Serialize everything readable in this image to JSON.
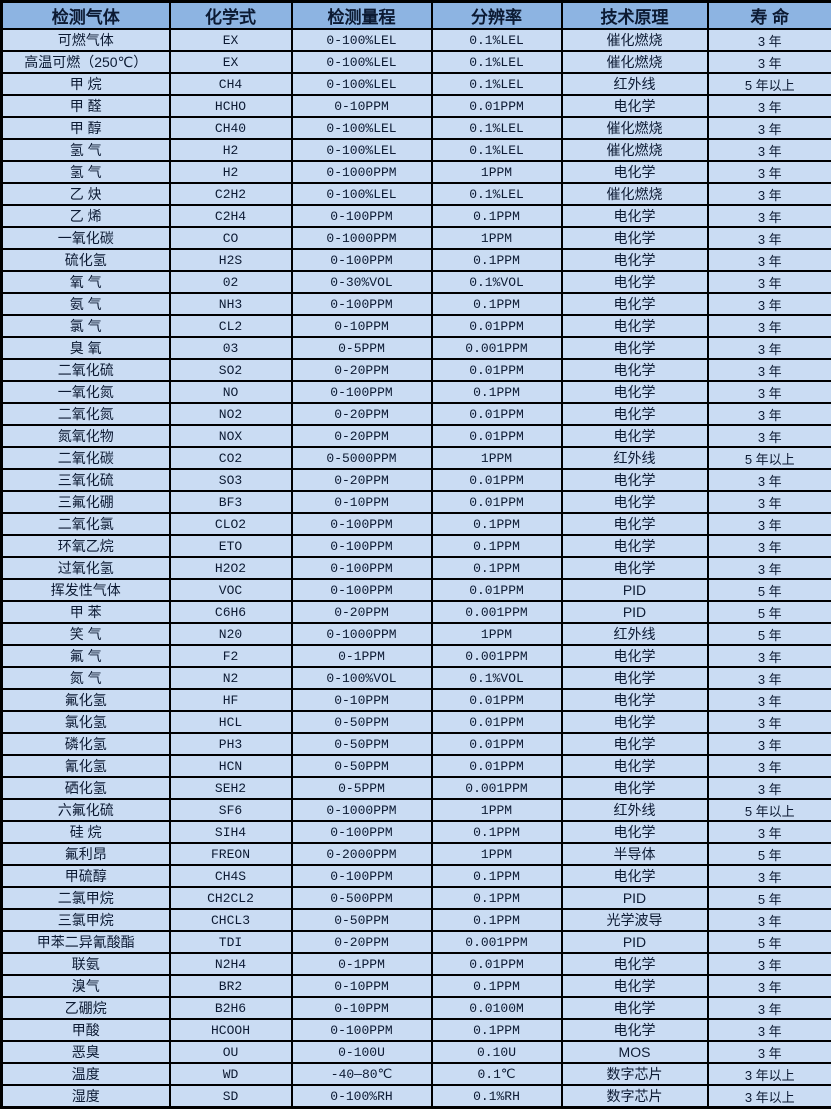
{
  "colors": {
    "header_bg": "#8db4e2",
    "row_bg": "#cadcf3",
    "border": "#000000",
    "text": "#0c1a33"
  },
  "table": {
    "columns": [
      {
        "key": "gas",
        "label": "检测气体"
      },
      {
        "key": "formula",
        "label": "化学式"
      },
      {
        "key": "range",
        "label": "检测量程"
      },
      {
        "key": "resolution",
        "label": "分辨率"
      },
      {
        "key": "principle",
        "label": "技术原理"
      },
      {
        "key": "lifespan",
        "label": "寿  命"
      }
    ],
    "rows": [
      [
        "可燃气体",
        "EX",
        "0-100%LEL",
        "0.1%LEL",
        "催化燃烧",
        "3 年"
      ],
      [
        "高温可燃（250℃）",
        "EX",
        "0-100%LEL",
        "0.1%LEL",
        "催化燃烧",
        "3 年"
      ],
      [
        "甲  烷",
        "CH4",
        "0-100%LEL",
        "0.1%LEL",
        "红外线",
        "5 年以上"
      ],
      [
        "甲  醛",
        "HCHO",
        "0-10PPM",
        "0.01PPM",
        "电化学",
        "3 年"
      ],
      [
        "甲  醇",
        "CH40",
        "0-100%LEL",
        "0.1%LEL",
        "催化燃烧",
        "3 年"
      ],
      [
        "氢  气",
        "H2",
        "0-100%LEL",
        "0.1%LEL",
        "催化燃烧",
        "3 年"
      ],
      [
        "氢  气",
        "H2",
        "0-1000PPM",
        "1PPM",
        "电化学",
        "3 年"
      ],
      [
        "乙  炔",
        "C2H2",
        "0-100%LEL",
        "0.1%LEL",
        "催化燃烧",
        "3 年"
      ],
      [
        "乙  烯",
        "C2H4",
        "0-100PPM",
        "0.1PPM",
        "电化学",
        "3 年"
      ],
      [
        "一氧化碳",
        "CO",
        "0-1000PPM",
        "1PPM",
        "电化学",
        "3 年"
      ],
      [
        "硫化氢",
        "H2S",
        "0-100PPM",
        "0.1PPM",
        "电化学",
        "3 年"
      ],
      [
        "氧  气",
        "02",
        "0-30%VOL",
        "0.1%VOL",
        "电化学",
        "3 年"
      ],
      [
        "氨  气",
        "NH3",
        "0-100PPM",
        "0.1PPM",
        "电化学",
        "3 年"
      ],
      [
        "氯  气",
        "CL2",
        "0-10PPM",
        "0.01PPM",
        "电化学",
        "3 年"
      ],
      [
        "臭  氧",
        "03",
        "0-5PPM",
        "0.001PPM",
        "电化学",
        "3 年"
      ],
      [
        "二氧化硫",
        "SO2",
        "0-20PPM",
        "0.01PPM",
        "电化学",
        "3 年"
      ],
      [
        "一氧化氮",
        "NO",
        "0-100PPM",
        "0.1PPM",
        "电化学",
        "3 年"
      ],
      [
        "二氧化氮",
        "NO2",
        "0-20PPM",
        "0.01PPM",
        "电化学",
        "3 年"
      ],
      [
        "氮氧化物",
        "NOX",
        "0-20PPM",
        "0.01PPM",
        "电化学",
        "3 年"
      ],
      [
        "二氧化碳",
        "CO2",
        "0-5000PPM",
        "1PPM",
        "红外线",
        "5 年以上"
      ],
      [
        "三氧化硫",
        "SO3",
        "0-20PPM",
        "0.01PPM",
        "电化学",
        "3 年"
      ],
      [
        "三氟化硼",
        "BF3",
        "0-10PPM",
        "0.01PPM",
        "电化学",
        "3 年"
      ],
      [
        "二氧化氯",
        "CLO2",
        "0-100PPM",
        "0.1PPM",
        "电化学",
        "3 年"
      ],
      [
        "环氧乙烷",
        "ETO",
        "0-100PPM",
        "0.1PPM",
        "电化学",
        "3 年"
      ],
      [
        "过氧化氢",
        "H2O2",
        "0-100PPM",
        "0.1PPM",
        "电化学",
        "3 年"
      ],
      [
        "挥发性气体",
        "VOC",
        "0-100PPM",
        "0.01PPM",
        "PID",
        "5 年"
      ],
      [
        "甲  苯",
        "C6H6",
        "0-20PPM",
        "0.001PPM",
        "PID",
        "5 年"
      ],
      [
        "笑  气",
        "N20",
        "0-1000PPM",
        "1PPM",
        "红外线",
        "5 年"
      ],
      [
        "氟  气",
        "F2",
        "0-1PPM",
        "0.001PPM",
        "电化学",
        "3 年"
      ],
      [
        "氮  气",
        "N2",
        "0-100%VOL",
        "0.1%VOL",
        "电化学",
        "3 年"
      ],
      [
        "氟化氢",
        "HF",
        "0-10PPM",
        "0.01PPM",
        "电化学",
        "3 年"
      ],
      [
        "氯化氢",
        "HCL",
        "0-50PPM",
        "0.01PPM",
        "电化学",
        "3 年"
      ],
      [
        "磷化氢",
        "PH3",
        "0-50PPM",
        "0.01PPM",
        "电化学",
        "3 年"
      ],
      [
        "氰化氢",
        "HCN",
        "0-50PPM",
        "0.01PPM",
        "电化学",
        "3 年"
      ],
      [
        "硒化氢",
        "SEH2",
        "0-5PPM",
        "0.001PPM",
        "电化学",
        "3 年"
      ],
      [
        "六氟化硫",
        "SF6",
        "0-1000PPM",
        "1PPM",
        "红外线",
        "5 年以上"
      ],
      [
        "硅  烷",
        "SIH4",
        "0-100PPM",
        "0.1PPM",
        "电化学",
        "3 年"
      ],
      [
        "氟利昂",
        "FREON",
        "0-2000PPM",
        "1PPM",
        "半导体",
        "5 年"
      ],
      [
        "甲硫醇",
        "CH4S",
        "0-100PPM",
        "0.1PPM",
        "电化学",
        "3 年"
      ],
      [
        "二氯甲烷",
        "CH2CL2",
        "0-500PPM",
        "0.1PPM",
        "PID",
        "5 年"
      ],
      [
        "三氯甲烷",
        "CHCL3",
        "0-50PPM",
        "0.1PPM",
        "光学波导",
        "3 年"
      ],
      [
        "甲苯二异氰酸酯",
        "TDI",
        "0-20PPM",
        "0.001PPM",
        "PID",
        "5 年"
      ],
      [
        "联氨",
        "N2H4",
        "0-1PPM",
        "0.01PPM",
        "电化学",
        "3 年"
      ],
      [
        "溴气",
        "BR2",
        "0-10PPM",
        "0.1PPM",
        "电化学",
        "3 年"
      ],
      [
        "乙硼烷",
        "B2H6",
        "0-10PPM",
        "0.0100M",
        "电化学",
        "3 年"
      ],
      [
        "甲酸",
        "HCOOH",
        "0-100PPM",
        "0.1PPM",
        "电化学",
        "3 年"
      ],
      [
        "恶臭",
        "OU",
        "0-100U",
        "0.10U",
        "MOS",
        "3 年"
      ],
      [
        "温度",
        "WD",
        "-40—80℃",
        "0.1℃",
        "数字芯片",
        "3 年以上"
      ],
      [
        "湿度",
        "SD",
        "0-100%RH",
        "0.1%RH",
        "数字芯片",
        "3 年以上"
      ]
    ]
  }
}
